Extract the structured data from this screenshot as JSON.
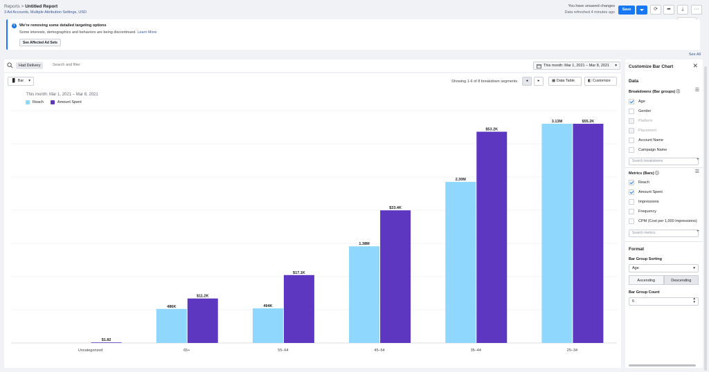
{
  "header": {
    "crumb_root": "Reports",
    "crumb_sep": ">",
    "crumb_title": "Untitled Report",
    "subtitle": "3 Ad Accounts, Multiple Attribution Settings, USD",
    "unsaved": "You have unsaved changes",
    "refreshed": "Data refreshed 4 minutes ago",
    "save_label": "Save",
    "export_tooltip": "Export"
  },
  "notice": {
    "title": "We're removing some detailed targeting options",
    "text": "Some interests, demographics and behaviors are being discontinued.",
    "learn_more": "Learn More",
    "button": "See Affected Ad Sets",
    "see_all": "See All"
  },
  "filter": {
    "chip": "Had Delivery",
    "placeholder": "Search and filter",
    "date": "This month: Mar 1, 2021 – Mar 8, 2021"
  },
  "chart_toolbar": {
    "type_label": "Bar",
    "showing": "Showing 1-6 of 8 breakdown segments",
    "data_table": "Data Table",
    "customize": "Customize"
  },
  "chart_data": {
    "type": "bar",
    "date_range": "This month: Mar 1, 2021 – Mar 8, 2021",
    "categories": [
      "Uncategorized",
      "65+",
      "55–64",
      "45–54",
      "35–44",
      "25–34"
    ],
    "series": [
      {
        "name": "Reach",
        "values": [
          0,
          486000,
          494000,
          1380000,
          2300000,
          3130000
        ],
        "labels": [
          "",
          "486K",
          "494K",
          "1.38M",
          "2.30M",
          "3.13M"
        ],
        "color": "#8fd7fc"
      },
      {
        "name": "Amount Spent",
        "values": [
          1.82,
          11200,
          17100,
          33400,
          53200,
          55200
        ],
        "labels": [
          "$1.82",
          "$11.2K",
          "$17.1K",
          "$33.4K",
          "$53.2K",
          "$55.2K"
        ],
        "color": "#5d37bf"
      }
    ],
    "grid": true,
    "legend": "top-left"
  },
  "panel": {
    "title": "Customize Bar Chart",
    "data_section": "Data",
    "breakdowns_label": "Breakdowns (Bar groups)",
    "breakdowns": [
      {
        "label": "Age",
        "checked": true,
        "disabled": false
      },
      {
        "label": "Gender",
        "checked": false,
        "disabled": false
      },
      {
        "label": "Platform",
        "checked": false,
        "disabled": true
      },
      {
        "label": "Placement",
        "checked": false,
        "disabled": true
      },
      {
        "label": "Account Name",
        "checked": false,
        "disabled": false
      },
      {
        "label": "Campaign Name",
        "checked": false,
        "disabled": false
      }
    ],
    "search_breakdowns": "Search breakdowns",
    "metrics_label": "Metrics (Bars)",
    "metrics": [
      {
        "label": "Reach",
        "checked": true
      },
      {
        "label": "Amount Spent",
        "checked": true
      },
      {
        "label": "Impressions",
        "checked": false
      },
      {
        "label": "Frequency",
        "checked": false
      },
      {
        "label": "CPM (Cost per 1,000 Impressions)",
        "checked": false
      }
    ],
    "search_metrics": "Search metrics",
    "format_section": "Format",
    "sorting_label": "Bar Group Sorting",
    "sorting_value": "Age",
    "ascending": "Ascending",
    "descending": "Descending",
    "count_label": "Bar Group Count",
    "count_value": "6"
  }
}
